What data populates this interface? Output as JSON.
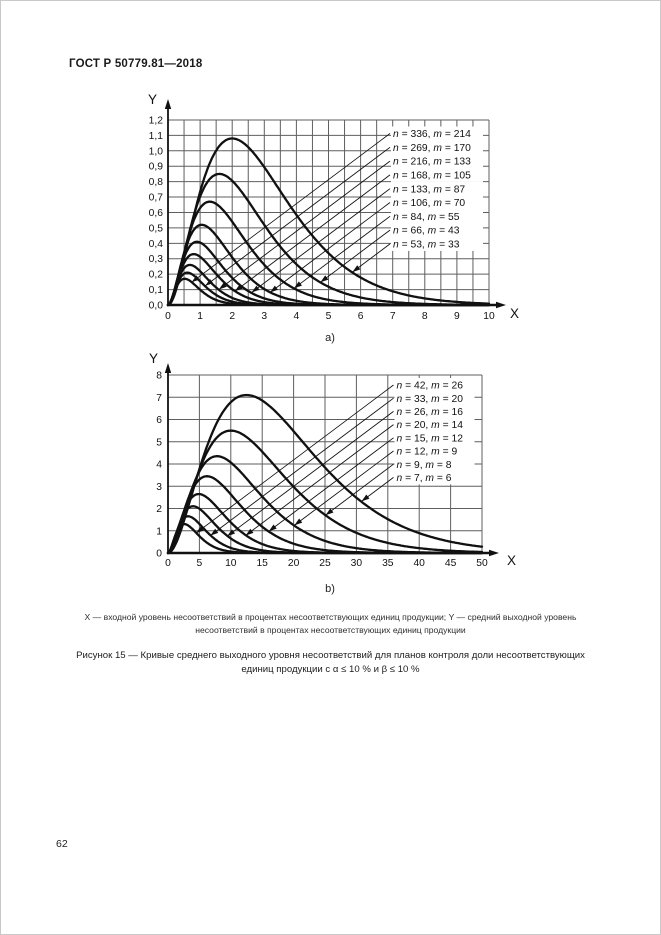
{
  "page": {
    "header": "ГОСТ Р 50779.81—2018",
    "page_number": "62",
    "axis_note": {
      "line1": "X — входной уровень несоответствий в процентах несоответствующих единиц продукции; Y — средний выходной уровень",
      "line2": "несоответствий в процентах несоответствующих единиц продукции"
    },
    "figure_caption": {
      "line1": "Рисунок 15 — Кривые среднего выходного уровня несоответствий для планов контроля доли несоответствующих",
      "line2": "единиц продукции с α ≤ 10 % и β ≤ 10 %"
    }
  },
  "chart_data": [
    {
      "id": "a",
      "type": "line",
      "sublabel": "a)",
      "xlabel": "X",
      "ylabel": "Y",
      "xlim": [
        0,
        10
      ],
      "ylim": [
        0,
        1.2
      ],
      "x_tick_labels": [
        "0",
        "1",
        "2",
        "3",
        "4",
        "5",
        "6",
        "7",
        "8",
        "9",
        "10"
      ],
      "y_tick_labels": [
        "0,0",
        "0,1",
        "0,2",
        "0,3",
        "0,4",
        "0,5",
        "0,6",
        "0,7",
        "0,8",
        "0,9",
        "1,0",
        "1,1",
        "1,2"
      ],
      "x_grid_step": 0.5,
      "y_grid_step": 0.1,
      "grid": true,
      "legend_position": "upper right",
      "curve_model": "y(x) = peak_y * (x/peak_x)^2 * exp(2 - 2*x/peak_x)",
      "series": [
        {
          "label": "n = 336, m = 214",
          "n": 336,
          "m": 214,
          "peak_x": 0.52,
          "peak_y": 0.17
        },
        {
          "label": "n = 269, m = 170",
          "n": 269,
          "m": 170,
          "peak_x": 0.6,
          "peak_y": 0.21
        },
        {
          "label": "n = 216, m = 133",
          "n": 216,
          "m": 133,
          "peak_x": 0.68,
          "peak_y": 0.26
        },
        {
          "label": "n = 168, m = 105",
          "n": 168,
          "m": 105,
          "peak_x": 0.8,
          "peak_y": 0.33
        },
        {
          "label": "n = 133, m = 87",
          "n": 133,
          "m": 87,
          "peak_x": 0.9,
          "peak_y": 0.41
        },
        {
          "label": "n = 106, m = 70",
          "n": 106,
          "m": 70,
          "peak_x": 1.05,
          "peak_y": 0.52
        },
        {
          "label": "n = 84, m = 55",
          "n": 84,
          "m": 55,
          "peak_x": 1.3,
          "peak_y": 0.67
        },
        {
          "label": "n = 66, m = 43",
          "n": 66,
          "m": 43,
          "peak_x": 1.6,
          "peak_y": 0.85
        },
        {
          "label": "n = 53, m = 33",
          "n": 53,
          "m": 33,
          "peak_x": 2.0,
          "peak_y": 1.08
        }
      ]
    },
    {
      "id": "b",
      "type": "line",
      "sublabel": "b)",
      "xlabel": "X",
      "ylabel": "Y",
      "xlim": [
        0,
        50
      ],
      "ylim": [
        0,
        8
      ],
      "x_tick_labels": [
        "0",
        "5",
        "10",
        "15",
        "20",
        "25",
        "30",
        "35",
        "40",
        "45",
        "50"
      ],
      "y_tick_labels": [
        "0",
        "1",
        "2",
        "3",
        "4",
        "5",
        "6",
        "7",
        "8"
      ],
      "x_grid_step": 5,
      "y_grid_step": 1,
      "grid": true,
      "legend_position": "upper right",
      "curve_model": "y(x) = peak_y * (x/peak_x)^2 * exp(2 - 2*x/peak_x)",
      "series": [
        {
          "label": "n = 42, m = 26",
          "n": 42,
          "m": 26,
          "peak_x": 2.6,
          "peak_y": 1.3
        },
        {
          "label": "n = 33, m = 20",
          "n": 33,
          "m": 20,
          "peak_x": 3.2,
          "peak_y": 1.65
        },
        {
          "label": "n = 26, m = 16",
          "n": 26,
          "m": 16,
          "peak_x": 4.0,
          "peak_y": 2.1
        },
        {
          "label": "n = 20, m = 14",
          "n": 20,
          "m": 14,
          "peak_x": 4.9,
          "peak_y": 2.65
        },
        {
          "label": "n = 15, m = 12",
          "n": 15,
          "m": 12,
          "peak_x": 6.2,
          "peak_y": 3.45
        },
        {
          "label": "n = 12, m = 9",
          "n": 12,
          "m": 9,
          "peak_x": 7.8,
          "peak_y": 4.35
        },
        {
          "label": "n = 9, m = 8",
          "n": 9,
          "m": 8,
          "peak_x": 10.0,
          "peak_y": 5.5
        },
        {
          "label": "n = 7, m = 6",
          "n": 7,
          "m": 6,
          "peak_x": 12.5,
          "peak_y": 7.1
        }
      ]
    }
  ]
}
